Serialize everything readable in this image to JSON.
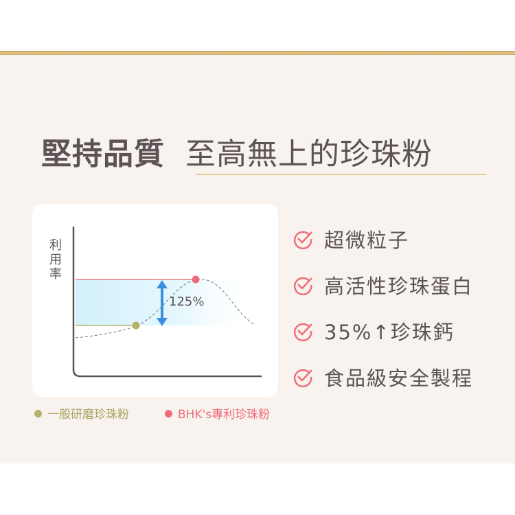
{
  "title": {
    "bold": "堅持品質",
    "regular": "至高無上的珍珠粉"
  },
  "diagram": {
    "y_axis_label": "利用率",
    "increase_label": "125%",
    "legend": [
      {
        "label": "一般研磨珍珠粉",
        "color": "#b5b06a"
      },
      {
        "label": "BHK's專利珍珠粉",
        "color": "#f06b78"
      }
    ],
    "colors": {
      "band": "#d6f3fc",
      "arrow": "#3b8fe0",
      "axis": "#5b5355"
    }
  },
  "features": [
    {
      "label": "超微粒子",
      "icon": "check-circle-icon"
    },
    {
      "label": "高活性珍珠蛋白",
      "icon": "check-circle-icon"
    },
    {
      "label": "35%↑珍珠鈣",
      "icon": "check-circle-icon"
    },
    {
      "label": "食品級安全製程",
      "icon": "check-circle-icon"
    }
  ],
  "colors": {
    "accent_gold": "#d9bf80",
    "check": "#f06b78",
    "text": "#5b5355",
    "background": "#f8f3ef"
  }
}
